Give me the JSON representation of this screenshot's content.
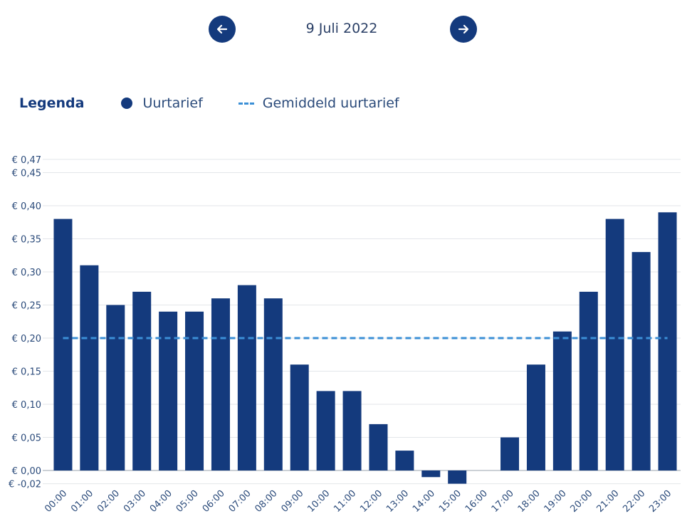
{
  "nav": {
    "date": "9 Juli 2022",
    "prev_icon": "arrow-left-icon",
    "next_icon": "arrow-right-icon"
  },
  "legend": {
    "title": "Legenda",
    "items": [
      {
        "label": "Uurtarief",
        "icon": "dot-icon"
      },
      {
        "label": "Gemiddeld uurtarief",
        "icon": "dashed-line-icon"
      }
    ]
  },
  "colors": {
    "bar": "#143a7d",
    "average_line": "#3b8fd6",
    "grid": "#e3e6ea",
    "button": "#143a7d"
  },
  "chart_data": {
    "type": "bar",
    "categories": [
      "00:00",
      "01:00",
      "02:00",
      "03:00",
      "04:00",
      "05:00",
      "06:00",
      "07:00",
      "08:00",
      "09:00",
      "10:00",
      "11:00",
      "12:00",
      "13:00",
      "14:00",
      "15:00",
      "16:00",
      "17:00",
      "18:00",
      "19:00",
      "20:00",
      "21:00",
      "22:00",
      "23:00"
    ],
    "series": [
      {
        "name": "Uurtarief",
        "values": [
          0.38,
          0.31,
          0.25,
          0.27,
          0.24,
          0.24,
          0.26,
          0.28,
          0.26,
          0.16,
          0.12,
          0.12,
          0.07,
          0.03,
          -0.01,
          -0.02,
          0,
          0.05,
          0.16,
          0.21,
          0.27,
          0.38,
          0.33,
          0.39
        ]
      }
    ],
    "average": 0.2,
    "yticks": [
      -0.02,
      0,
      0.05,
      0.1,
      0.15,
      0.2,
      0.25,
      0.3,
      0.35,
      0.4,
      0.45,
      0.47
    ],
    "ytick_labels": [
      "€ -0,02",
      "€ 0,00",
      "€ 0,05",
      "€ 0,10",
      "€ 0,15",
      "€ 0,20",
      "€ 0,25",
      "€ 0,30",
      "€ 0,35",
      "€ 0,40",
      "€ 0,45",
      "€ 0,47"
    ],
    "ylim": [
      -0.02,
      0.47
    ],
    "grid": true
  }
}
